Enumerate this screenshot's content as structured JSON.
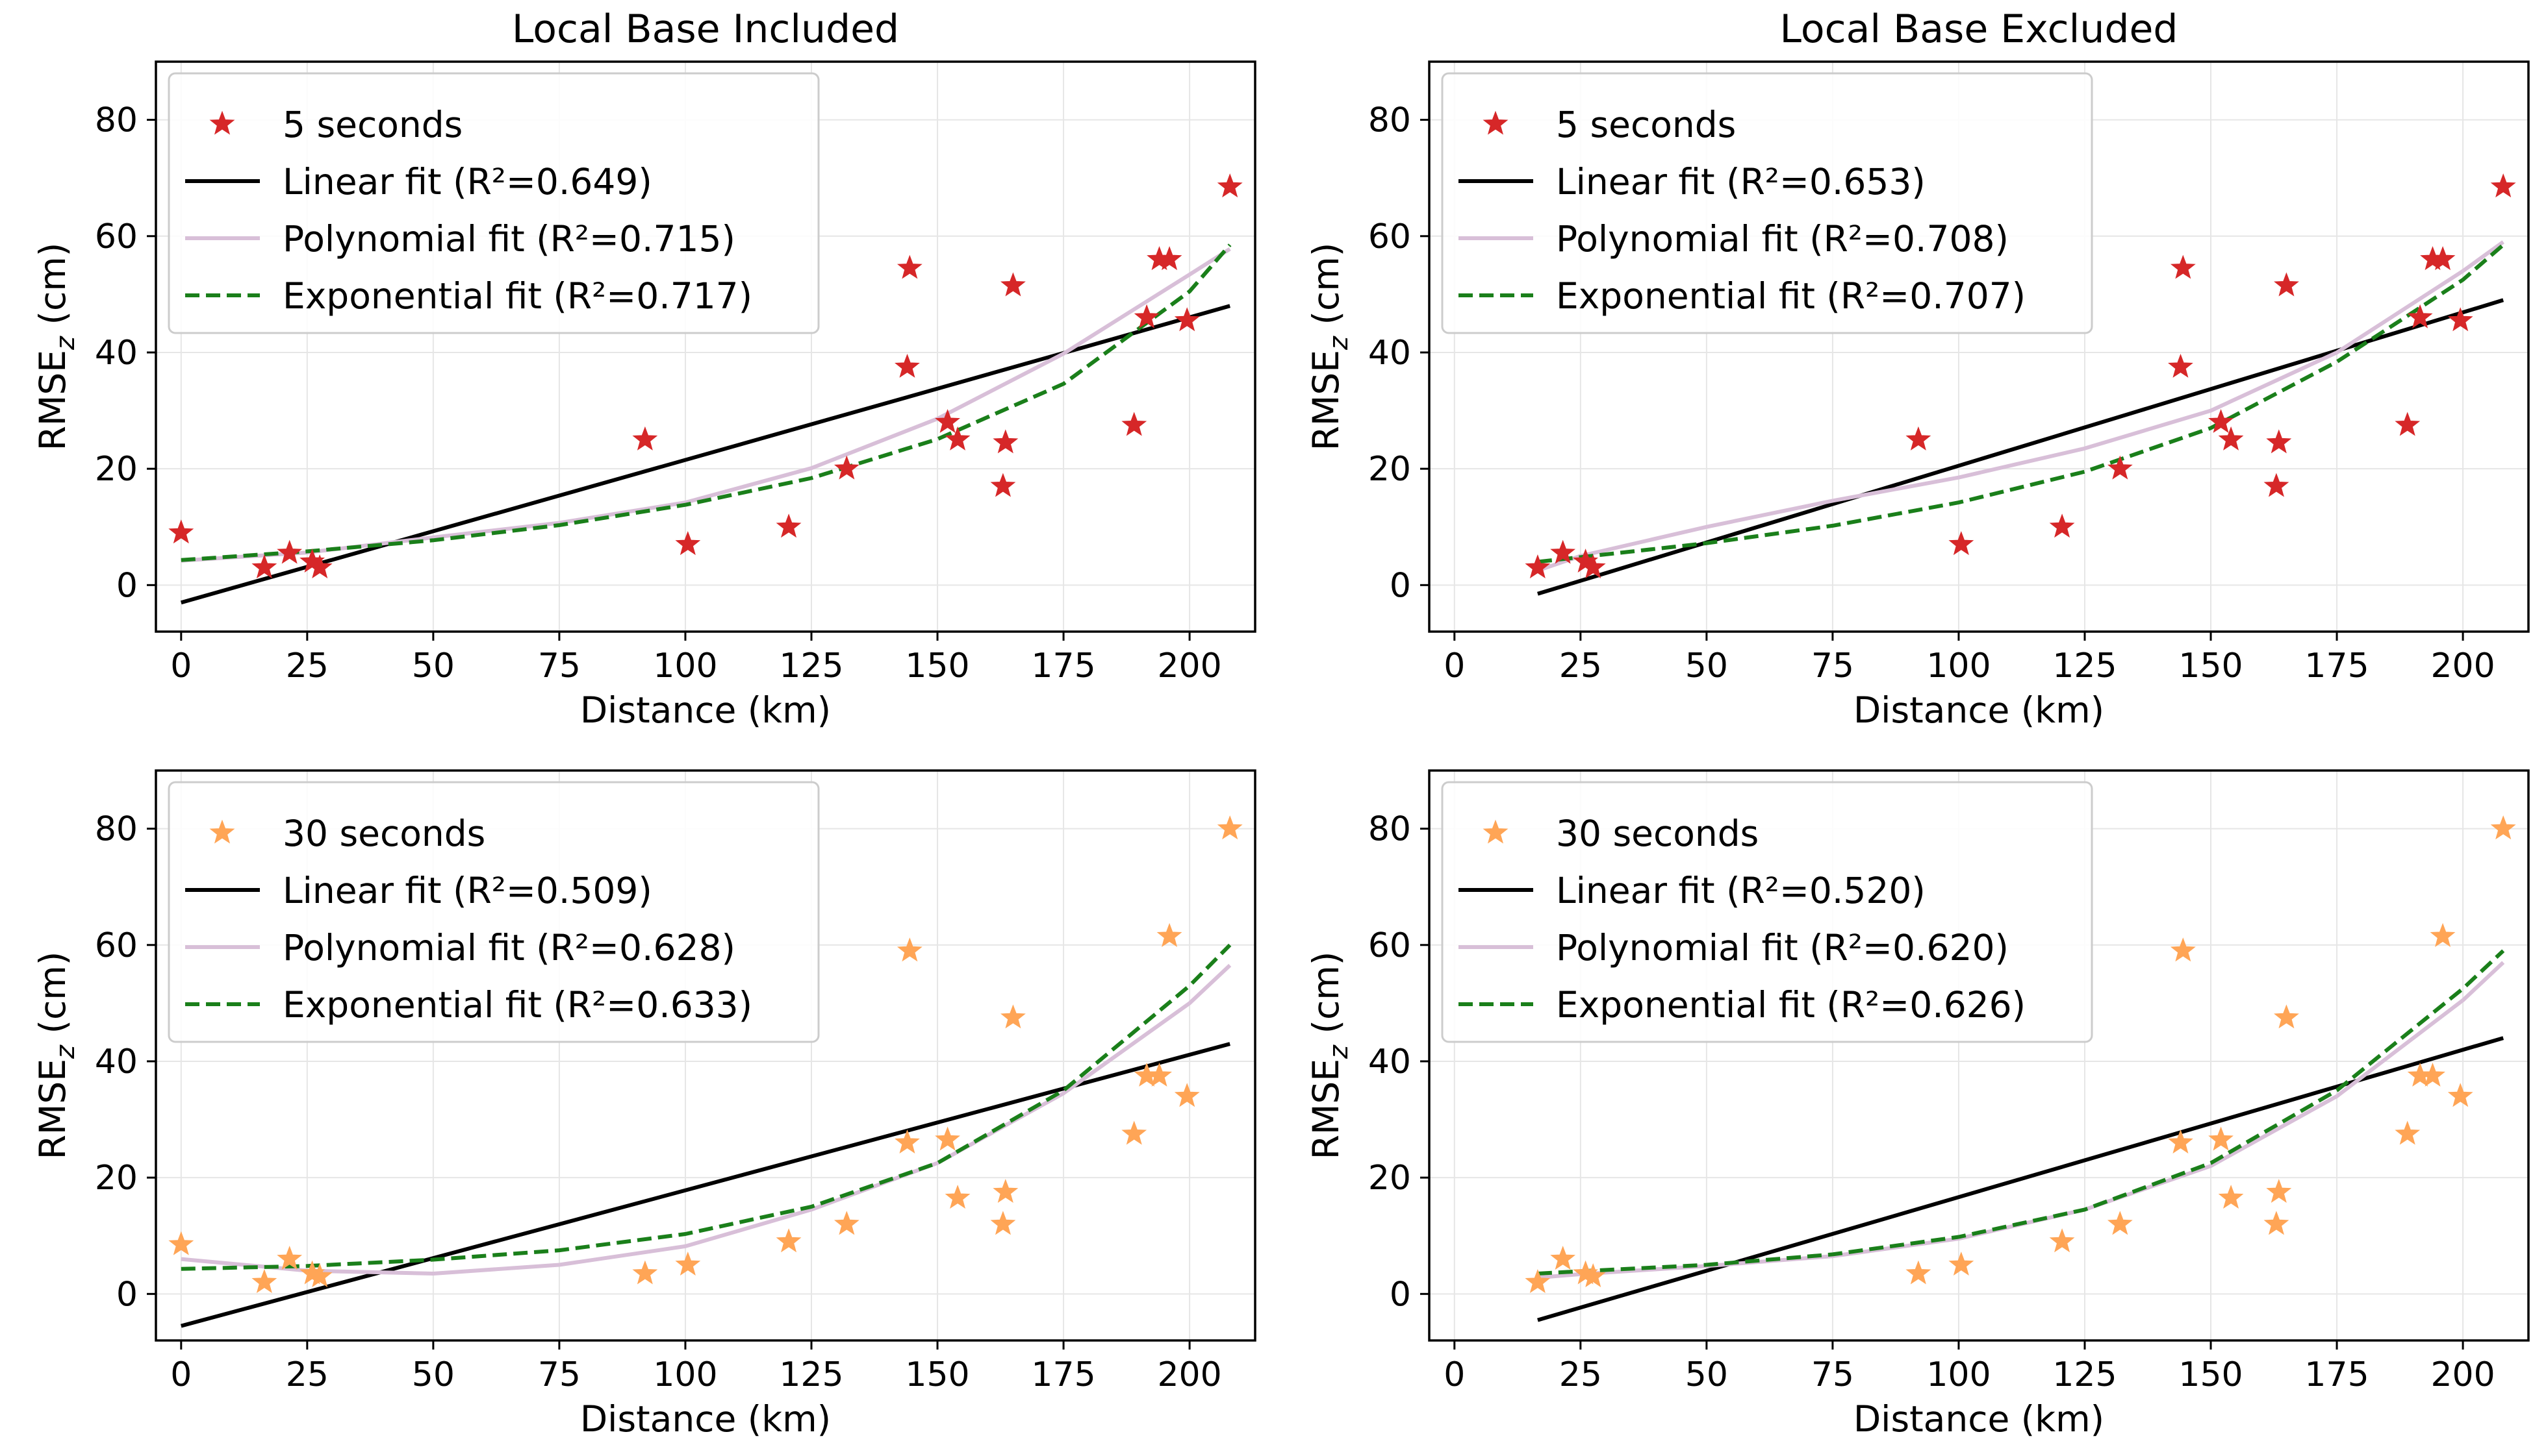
{
  "figure": {
    "columns": [
      "Local Base Included",
      "Local Base Excluded"
    ]
  },
  "chart_data": [
    {
      "type": "scatter",
      "title": "Local Base Included",
      "xlabel": "Distance (km)",
      "ylabel": "RMSE",
      "ylabel_sub": "z",
      "ylabel_unit": " (cm)",
      "xlim": [
        -5,
        213
      ],
      "ylim": [
        -8,
        90
      ],
      "xticks": [
        "0",
        "25",
        "50",
        "75",
        "100",
        "125",
        "150",
        "175",
        "200"
      ],
      "yticks": [
        "0",
        "20",
        "40",
        "60",
        "80"
      ],
      "marker_color": "#d62728",
      "legend": [
        "5 seconds",
        "Linear fit (R²=0.649)",
        "Polynomial fit (R²=0.715)",
        "Exponential fit (R²=0.717)"
      ],
      "series": [
        {
          "name": "5 seconds",
          "kind": "points",
          "x": [
            0,
            16.5,
            21.5,
            26,
            27.5,
            92,
            100.5,
            120.5,
            132,
            144,
            144.5,
            152,
            154,
            163,
            163.5,
            165,
            189,
            191.5,
            194,
            196,
            199.5,
            208
          ],
          "y": [
            9,
            3,
            5.5,
            4,
            3,
            25,
            7,
            10,
            20,
            37.5,
            54.5,
            28,
            25,
            17,
            24.5,
            51.5,
            27.5,
            46,
            56,
            56,
            45.5,
            68.5
          ]
        },
        {
          "name": "Linear fit (R²=0.649)",
          "kind": "line",
          "x": [
            0,
            208
          ],
          "y": [
            -3,
            48
          ]
        },
        {
          "name": "Polynomial fit (R²=0.715)",
          "kind": "curve",
          "x": [
            0,
            25,
            50,
            75,
            100,
            125,
            150,
            175,
            200,
            208
          ],
          "y": [
            4.2,
            5.6,
            8.2,
            10.7,
            14.2,
            20.1,
            28.6,
            39.8,
            53.4,
            57.8
          ]
        },
        {
          "name": "Exponential fit (R²=0.717)",
          "kind": "curve",
          "x": [
            0,
            25,
            50,
            75,
            100,
            125,
            150,
            175,
            200,
            208
          ],
          "y": [
            4.3,
            5.8,
            7.7,
            10.3,
            13.8,
            18.4,
            25.1,
            34.6,
            50.5,
            58.5
          ]
        }
      ]
    },
    {
      "type": "scatter",
      "title": "Local Base Excluded",
      "xlabel": "Distance (km)",
      "ylabel": "RMSE",
      "ylabel_sub": "z",
      "ylabel_unit": " (cm)",
      "xlim": [
        -5,
        213
      ],
      "ylim": [
        -8,
        90
      ],
      "xticks": [
        "0",
        "25",
        "50",
        "75",
        "100",
        "125",
        "150",
        "175",
        "200"
      ],
      "yticks": [
        "0",
        "20",
        "40",
        "60",
        "80"
      ],
      "marker_color": "#d62728",
      "legend": [
        "5 seconds",
        "Linear fit (R²=0.653)",
        "Polynomial fit (R²=0.708)",
        "Exponential fit (R²=0.707)"
      ],
      "series": [
        {
          "name": "5 seconds",
          "kind": "points",
          "x": [
            16.5,
            21.5,
            26,
            27.5,
            92,
            100.5,
            120.5,
            132,
            144,
            144.5,
            152,
            154,
            163,
            163.5,
            165,
            189,
            191.5,
            194,
            196,
            199.5,
            208
          ],
          "y": [
            3,
            5.5,
            4,
            3,
            25,
            7,
            10,
            20,
            37.5,
            54.5,
            28,
            25,
            17,
            24.5,
            51.5,
            27.5,
            46,
            56,
            56,
            45.5,
            68.5
          ]
        },
        {
          "name": "Linear fit (R²=0.653)",
          "kind": "line",
          "x": [
            16.5,
            208
          ],
          "y": [
            -1.5,
            49
          ]
        },
        {
          "name": "Polynomial fit (R²=0.708)",
          "kind": "curve",
          "x": [
            16.5,
            25,
            50,
            75,
            100,
            125,
            150,
            175,
            200,
            208
          ],
          "y": [
            2.5,
            5,
            10,
            14.5,
            18.5,
            23.5,
            30,
            40,
            54,
            59
          ]
        },
        {
          "name": "Exponential fit (R²=0.707)",
          "kind": "curve",
          "x": [
            16.5,
            25,
            50,
            75,
            100,
            125,
            150,
            175,
            200,
            208
          ],
          "y": [
            4,
            4.8,
            7.2,
            10.2,
            14.2,
            19.5,
            27,
            38.4,
            52.5,
            58.5
          ]
        }
      ]
    },
    {
      "type": "scatter",
      "title": "",
      "xlabel": "Distance (km)",
      "ylabel": "RMSE",
      "ylabel_sub": "z",
      "ylabel_unit": " (cm)",
      "xlim": [
        -5,
        213
      ],
      "ylim": [
        -8,
        90
      ],
      "xticks": [
        "0",
        "25",
        "50",
        "75",
        "100",
        "125",
        "150",
        "175",
        "200"
      ],
      "yticks": [
        "0",
        "20",
        "40",
        "60",
        "80"
      ],
      "marker_color": "#ffa556",
      "legend": [
        "30 seconds",
        "Linear fit (R²=0.509)",
        "Polynomial fit (R²=0.628)",
        "Exponential fit (R²=0.633)"
      ],
      "series": [
        {
          "name": "30 seconds",
          "kind": "points",
          "x": [
            0,
            16.5,
            21.5,
            26,
            27.5,
            92,
            100.5,
            120.5,
            132,
            144,
            144.5,
            152,
            154,
            163,
            163.5,
            165,
            189,
            191.5,
            194,
            196,
            199.5,
            208
          ],
          "y": [
            8.5,
            2,
            6,
            3.5,
            3,
            3.5,
            5,
            9,
            12,
            26,
            59,
            26.5,
            16.5,
            12,
            17.5,
            47.5,
            27.5,
            37.5,
            37.5,
            61.5,
            34,
            80
          ]
        },
        {
          "name": "Linear fit (R²=0.509)",
          "kind": "line",
          "x": [
            0,
            208
          ],
          "y": [
            -5.5,
            43
          ]
        },
        {
          "name": "Polynomial fit (R²=0.628)",
          "kind": "curve",
          "x": [
            0,
            25,
            50,
            75,
            100,
            125,
            150,
            175,
            200,
            208
          ],
          "y": [
            6,
            4,
            3.5,
            5,
            8.2,
            14.5,
            22.5,
            34.5,
            50,
            56.5
          ]
        },
        {
          "name": "Exponential fit (R²=0.633)",
          "kind": "curve",
          "x": [
            0,
            25,
            50,
            75,
            100,
            125,
            150,
            175,
            200,
            208
          ],
          "y": [
            4.3,
            4.8,
            5.9,
            7.5,
            10.3,
            15,
            22.5,
            35,
            53,
            60
          ]
        }
      ]
    },
    {
      "type": "scatter",
      "title": "",
      "xlabel": "Distance (km)",
      "ylabel": "RMSE",
      "ylabel_sub": "z",
      "ylabel_unit": " (cm)",
      "xlim": [
        -5,
        213
      ],
      "ylim": [
        -8,
        90
      ],
      "xticks": [
        "0",
        "25",
        "50",
        "75",
        "100",
        "125",
        "150",
        "175",
        "200"
      ],
      "yticks": [
        "0",
        "20",
        "40",
        "60",
        "80"
      ],
      "marker_color": "#ffa556",
      "legend": [
        "30 seconds",
        "Linear fit (R²=0.520)",
        "Polynomial fit (R²=0.620)",
        "Exponential fit (R²=0.626)"
      ],
      "series": [
        {
          "name": "30 seconds",
          "kind": "points",
          "x": [
            16.5,
            21.5,
            26,
            27.5,
            92,
            100.5,
            120.5,
            132,
            144,
            144.5,
            152,
            154,
            163,
            163.5,
            165,
            189,
            191.5,
            194,
            196,
            199.5,
            208
          ],
          "y": [
            2,
            6,
            3.5,
            3,
            3.5,
            5,
            9,
            12,
            26,
            59,
            26.5,
            16.5,
            12,
            17.5,
            47.5,
            27.5,
            37.5,
            37.5,
            61.5,
            34,
            80
          ]
        },
        {
          "name": "Linear fit (R²=0.520)",
          "kind": "line",
          "x": [
            16.5,
            208
          ],
          "y": [
            -4.5,
            44
          ]
        },
        {
          "name": "Polynomial fit (R²=0.620)",
          "kind": "curve",
          "x": [
            16.5,
            25,
            50,
            75,
            100,
            125,
            150,
            175,
            200,
            208
          ],
          "y": [
            2.8,
            3.4,
            4.8,
            6.5,
            9.5,
            14.5,
            22,
            34,
            50.5,
            57
          ]
        },
        {
          "name": "Exponential fit (R²=0.626)",
          "kind": "curve",
          "x": [
            16.5,
            25,
            50,
            75,
            100,
            125,
            150,
            175,
            200,
            208
          ],
          "y": [
            3.5,
            3.9,
            5,
            6.8,
            9.8,
            14.5,
            22.5,
            35,
            52.5,
            59
          ]
        }
      ]
    }
  ]
}
